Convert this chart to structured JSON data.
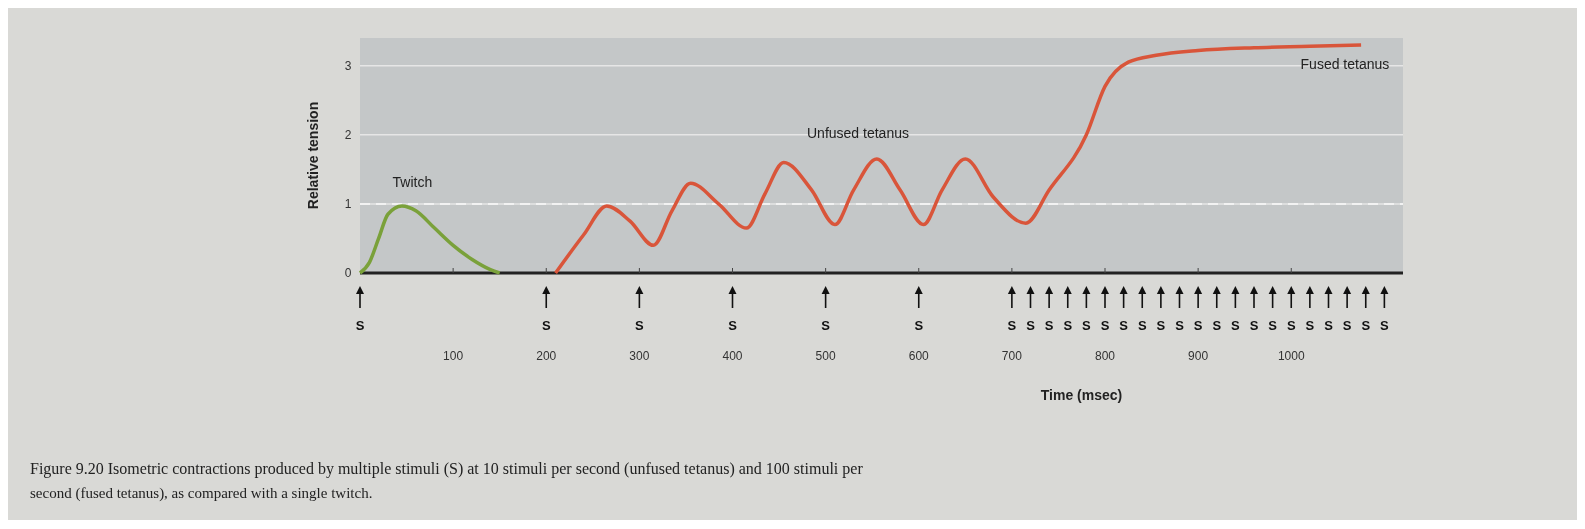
{
  "chart_data": {
    "type": "line",
    "xlabel": "Time (msec)",
    "ylabel": "Relative tension",
    "xlim": [
      0,
      1120
    ],
    "ylim": [
      0,
      3.4
    ],
    "xticks": [
      100,
      200,
      300,
      400,
      500,
      600,
      700,
      800,
      900,
      1000
    ],
    "yticks": [
      0,
      1,
      2,
      3
    ],
    "grid": "y",
    "ref_lines": [
      {
        "axis": "y",
        "value": 1,
        "color": "#f2f2f2",
        "line_style": "dashed"
      }
    ],
    "series": [
      {
        "color": "#7aa13a",
        "x": [
          0,
          10,
          20,
          30,
          45,
          60,
          80,
          100,
          120,
          140,
          150
        ],
        "values": [
          0,
          0.15,
          0.5,
          0.85,
          0.97,
          0.9,
          0.65,
          0.4,
          0.2,
          0.05,
          0
        ]
      },
      {
        "color": "#d9553a",
        "x": [
          210,
          240,
          265,
          290,
          315,
          335,
          355,
          385,
          415,
          435,
          455,
          485,
          510,
          530,
          555,
          580,
          605,
          625,
          650,
          680,
          715,
          740,
          780,
          800,
          825,
          855,
          900,
          960,
          1020,
          1075
        ],
        "values": [
          0,
          0.55,
          0.97,
          0.75,
          0.4,
          0.9,
          1.3,
          1.0,
          0.65,
          1.15,
          1.6,
          1.2,
          0.7,
          1.2,
          1.65,
          1.2,
          0.7,
          1.2,
          1.65,
          1.1,
          0.72,
          1.2,
          2.0,
          2.7,
          3.05,
          3.15,
          3.22,
          3.26,
          3.28,
          3.3
        ]
      }
    ],
    "annotations": [
      "Twitch",
      "Unfused tetanus",
      "Fused tetanus",
      "S",
      "S",
      "S",
      "S",
      "S",
      "S",
      "S",
      "S",
      "S",
      "S",
      "S",
      "S",
      "S",
      "S",
      "S",
      "S",
      "S",
      "S",
      "S",
      "S",
      "S",
      "S",
      "S",
      "S",
      "S",
      "S",
      "S",
      "Figure 9.20 Isometric contractions produced by multiple stimuli (S) at 10 stimuli per second (unfused tetanus) and 100 stimuli per",
      "second (fused tetanus), as compared with a single twitch."
    ]
  }
}
